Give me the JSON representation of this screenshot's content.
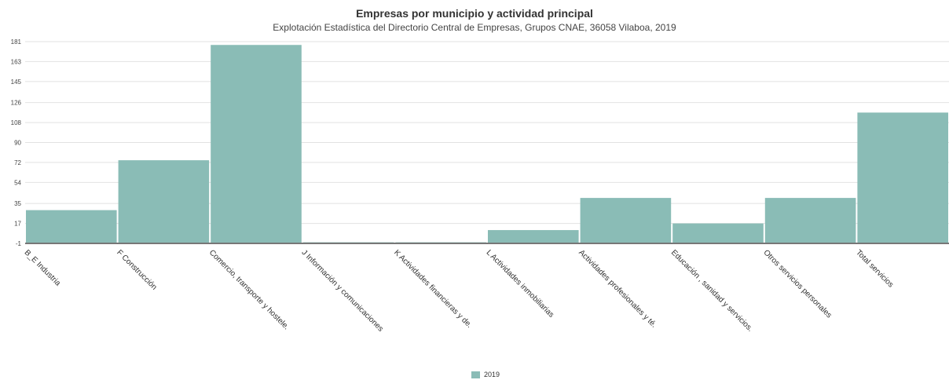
{
  "chart_data": {
    "type": "bar",
    "title": "Empresas por municipio y actividad principal",
    "subtitle": "Explotación Estadística del Directorio Central de Empresas, Grupos CNAE, 36058 Vilaboa, 2019",
    "categories": [
      "B_E Industria",
      "F Construcción",
      "Comercio, transporte y hostele.",
      "J Información y comunicaciones",
      "K Actividades financieras y de.",
      "L Actividades inmobiliarias",
      "Actividades profesionales y té.",
      "Educación , sanidad y servicios.",
      "Otros servicios personales",
      "Total servicios"
    ],
    "series": [
      {
        "name": "2019",
        "values": [
          29,
          74,
          178,
          0,
          0,
          11,
          40,
          17,
          40,
          117
        ]
      }
    ],
    "yticks": [
      "-1",
      "17",
      "35",
      "54",
      "72",
      "90",
      "108",
      "126",
      "145",
      "163",
      "181"
    ],
    "ylim": [
      -1,
      181
    ],
    "grid": true,
    "legend_position": "bottom-center",
    "bar_color": "#8abcb6"
  }
}
